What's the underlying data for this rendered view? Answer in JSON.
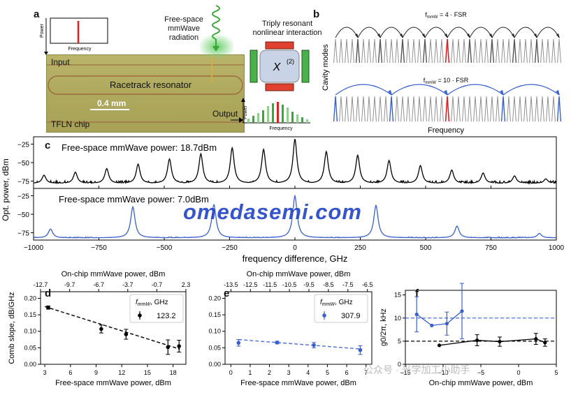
{
  "panel_letters": {
    "a": "a",
    "b": "b",
    "c": "c",
    "d": "d",
    "e": "e",
    "f": "f"
  },
  "panel_a": {
    "power_label": "Power",
    "frequency_label": "Frequency",
    "radiation_lines": [
      "Free-space",
      "mmWave",
      "radiation"
    ],
    "input_label": "Input",
    "racetrack_label": "Racetrack resonator",
    "scale_label": "0.4 mm",
    "chip_label": "TFLN chip",
    "output_label": "Output",
    "interaction_lines": [
      "Triply resonant",
      "nonlinear interaction"
    ],
    "chi_label": "X",
    "chi_sup": "(2)",
    "out_power_label": "Power",
    "out_frequency_label": "Frequency"
  },
  "panel_b": {
    "top_label_main": "f",
    "top_label_sub": "mmW",
    "top_label_rest": " = 4 · FSR",
    "bottom_label_main": "f",
    "bottom_label_sub": "mmW",
    "bottom_label_rest": " = 10 · FSR",
    "ylabel": "Cavity modes",
    "xlabel": "Frequency"
  },
  "colors": {
    "comb_black": "#000000",
    "comb_blue": "#3a5fcd",
    "accent_red": "#e02020",
    "dashed_blue": "#4a6fdc",
    "green": "#39a839"
  },
  "watermark": "omedasemi.com",
  "corner_watermark": "公众号 · 光学加工小助手",
  "chart_data": [
    {
      "id": "c",
      "type": "line",
      "title_top": "Free-space mmWave power: 18.7dBm",
      "title_bottom": "Free-space mmWave power: 7.0dBm",
      "xlabel": "frequency difference, GHz",
      "ylabel": "Opt. power, dBm",
      "xlim": [
        -1000,
        1000
      ],
      "ylim": [
        -85,
        -15
      ],
      "xticks": [
        -1000,
        -750,
        -500,
        -250,
        0,
        250,
        500,
        750,
        1000
      ],
      "xtick_labels": [
        "−1000",
        "−750",
        "−500",
        "−250",
        "0",
        "250",
        "500",
        "750",
        "1000"
      ],
      "yticks": [
        -25,
        -50,
        -75
      ],
      "ytick_labels": [
        "−25",
        "−50",
        "−75"
      ],
      "series": [
        {
          "peaks": [
            [
              -960,
              -67
            ],
            [
              -840,
              -63
            ],
            [
              -720,
              -58
            ],
            [
              -600,
              -52
            ],
            [
              -480,
              -45
            ],
            [
              -360,
              -38
            ],
            [
              -240,
              -30
            ],
            [
              -120,
              -32
            ],
            [
              0,
              -18
            ],
            [
              120,
              -35
            ],
            [
              240,
              -40
            ],
            [
              360,
              -47
            ],
            [
              480,
              -54
            ],
            [
              600,
              -60
            ],
            [
              720,
              -64
            ],
            [
              840,
              -68
            ],
            [
              960,
              -72
            ]
          ]
        },
        {
          "peaks": [
            [
              -935,
              -70
            ],
            [
              -620,
              -40
            ],
            [
              -310,
              -37
            ],
            [
              0,
              -25
            ],
            [
              310,
              -38
            ],
            [
              620,
              -66
            ],
            [
              935,
              -76
            ]
          ]
        }
      ]
    },
    {
      "id": "d",
      "type": "scatter",
      "xlabel": "Free-space mmWave power, dBm",
      "ylabel": "Comb slope, dB/GHz",
      "top_xlabel": "On-chip mmWave power, dBm",
      "xlim": [
        2.5,
        19.5
      ],
      "ylim": [
        0,
        0.22
      ],
      "xticks": [
        3,
        6,
        9,
        12,
        15,
        18
      ],
      "xtick_labels": [
        "3",
        "6",
        "9",
        "12",
        "15",
        "18"
      ],
      "yticks": [
        0,
        0.05,
        0.1,
        0.15,
        0.2
      ],
      "ytick_labels": [
        "0.00",
        "0.05",
        "0.10",
        "0.15",
        "0.20"
      ],
      "top_ticks": [
        "-12.7",
        "-9.7",
        "-6.7",
        "-3.7",
        "-0.7",
        "2.3"
      ],
      "legend_title": "f",
      "legend_title_sub": "mmW",
      "legend_title_rest": ", GHz",
      "legend_entry": "123.2",
      "points": [
        {
          "x": 3.4,
          "y": 0.172,
          "err": 0.005
        },
        {
          "x": 9.6,
          "y": 0.107,
          "err": 0.012
        },
        {
          "x": 12.5,
          "y": 0.091,
          "err": 0.015
        },
        {
          "x": 17.4,
          "y": 0.052,
          "err": 0.022
        },
        {
          "x": 18.7,
          "y": 0.055,
          "err": 0.018
        }
      ],
      "fit": [
        [
          3.0,
          0.175
        ],
        [
          18.8,
          0.046
        ]
      ]
    },
    {
      "id": "e",
      "type": "scatter",
      "xlabel": "Free-space mmWave power, dBm",
      "top_xlabel": "On-chip mmWave power, dBm",
      "xlim": [
        -0.3,
        7.3
      ],
      "ylim": [
        0,
        0.22
      ],
      "xticks": [
        0,
        1,
        2,
        3,
        4,
        5,
        6,
        7
      ],
      "xtick_labels": [
        "0",
        "1",
        "2",
        "3",
        "4",
        "5",
        "6",
        "7"
      ],
      "yticks": [
        0,
        0.05,
        0.1,
        0.15,
        0.2
      ],
      "ytick_labels": [
        "0.00",
        "0.05",
        "0.10",
        "0.15",
        "0.20"
      ],
      "top_ticks": [
        "-13.5",
        "-12.5",
        "-11.5",
        "-10.5",
        "-9.5",
        "-8.5",
        "-7.5",
        "-6.5"
      ],
      "legend_title": "f",
      "legend_title_sub": "mmW",
      "legend_title_rest": ", GHz",
      "legend_entry": "307.9",
      "points": [
        {
          "x": 0.4,
          "y": 0.065,
          "err": 0.01
        },
        {
          "x": 2.4,
          "y": 0.066,
          "err": 0.004
        },
        {
          "x": 4.3,
          "y": 0.058,
          "err": 0.008
        },
        {
          "x": 6.7,
          "y": 0.043,
          "err": 0.013
        }
      ],
      "fit": [
        [
          0.4,
          0.075
        ],
        [
          6.8,
          0.046
        ]
      ]
    },
    {
      "id": "f",
      "type": "scatter",
      "xlabel": "On-chip mmWave power, dBm",
      "ylabel": "g0/2π, kHz",
      "xlim": [
        -15,
        5
      ],
      "ylim": [
        0,
        16
      ],
      "xticks": [
        -15,
        -10,
        -5,
        0,
        5
      ],
      "xtick_labels": [
        "−15",
        "−10",
        "−5",
        "0",
        "5"
      ],
      "yticks": [
        0,
        5,
        10,
        15
      ],
      "ytick_labels": [
        "0",
        "5",
        "10",
        "15"
      ],
      "hlines": [
        {
          "y": 10,
          "color": "#4a6fdc"
        },
        {
          "y": 5,
          "color": "#000000"
        }
      ],
      "series": [
        {
          "name": "blue",
          "points": [
            {
              "x": -13.5,
              "y": 10.8,
              "err": 3.8
            },
            {
              "x": -11.5,
              "y": 8.4,
              "err": 0
            },
            {
              "x": -9.5,
              "y": 8.8,
              "err": 2.5
            },
            {
              "x": -7.5,
              "y": 11.5,
              "err": 6.0
            }
          ]
        },
        {
          "name": "black",
          "points": [
            {
              "x": -10.5,
              "y": 4.1,
              "err": 0
            },
            {
              "x": -5.5,
              "y": 5.2,
              "err": 1.2
            },
            {
              "x": -2.5,
              "y": 4.9,
              "err": 1.0
            },
            {
              "x": 2.3,
              "y": 5.5,
              "err": 1.2
            },
            {
              "x": 3.5,
              "y": 4.7,
              "err": 0.8
            }
          ]
        }
      ]
    }
  ]
}
